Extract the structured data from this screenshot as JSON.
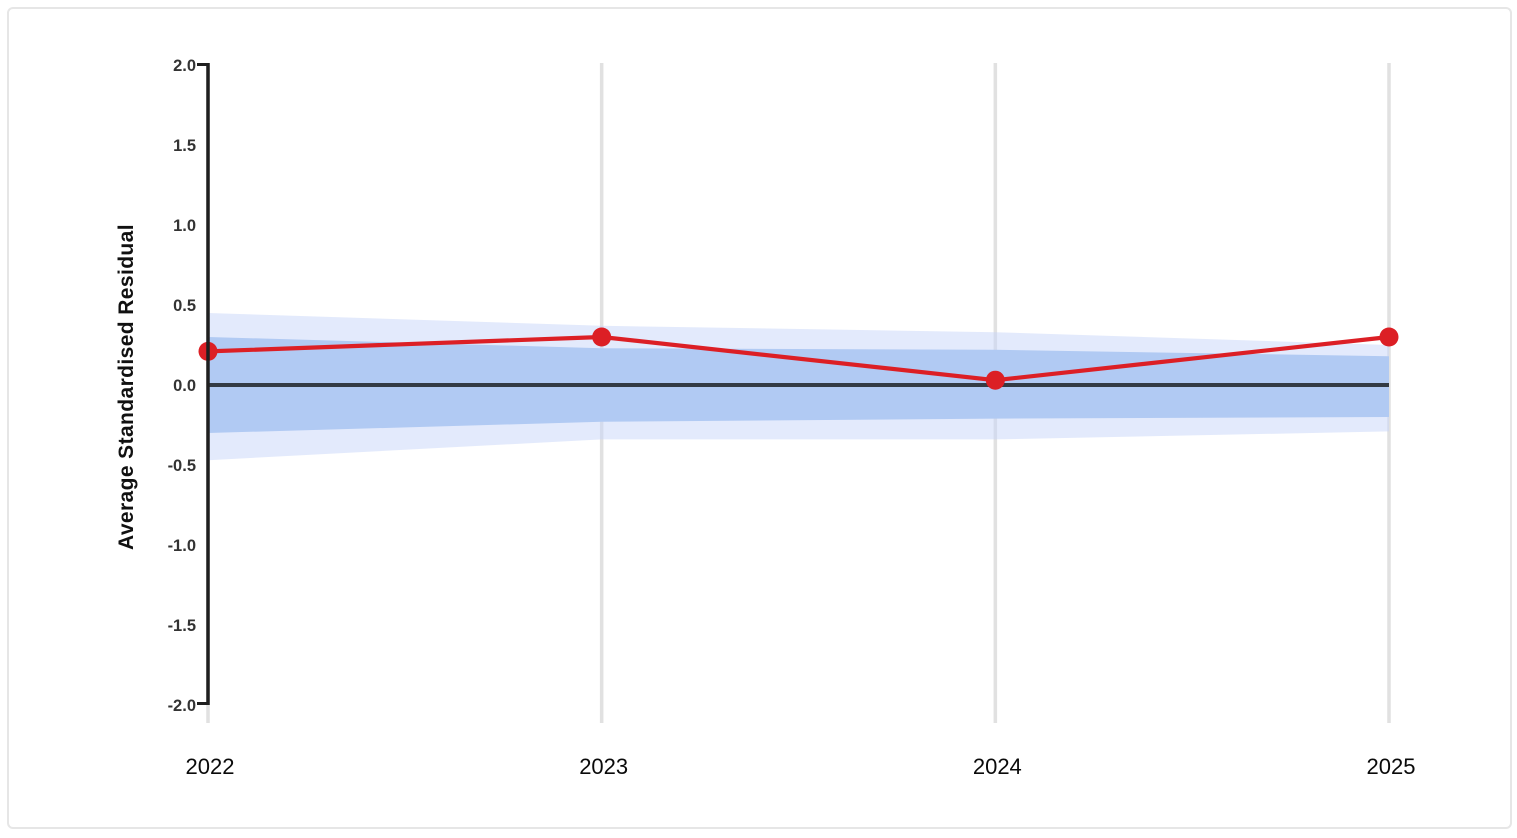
{
  "chart_data": {
    "type": "line",
    "title": "",
    "xlabel": "",
    "ylabel": "Average Standardised Residual",
    "categories": [
      "2022",
      "2023",
      "2024",
      "2025"
    ],
    "series": [
      {
        "name": "average-standardised-residual",
        "values": [
          0.21,
          0.3,
          0.03,
          0.3
        ],
        "marker": "circle"
      }
    ],
    "bands": {
      "inner": {
        "upper": [
          0.3,
          0.23,
          0.22,
          0.18
        ],
        "lower": [
          -0.3,
          -0.23,
          -0.21,
          -0.2
        ]
      },
      "outer": {
        "upper": [
          0.45,
          0.37,
          0.33,
          0.25
        ],
        "lower": [
          -0.47,
          -0.34,
          -0.34,
          -0.29
        ]
      }
    },
    "reference_line_y": 0.0,
    "ylim": [
      -2.0,
      2.0
    ],
    "y_tick_labels": [
      "2.0",
      "1.5",
      "1.0",
      "0.5",
      "0.0",
      "-0.5",
      "-1.0",
      "-1.5",
      "-2.0"
    ],
    "grid": "vertical-per-category",
    "legend": "none",
    "colors": {
      "series": "#dc1f25",
      "band_inner": "#b1caf3",
      "band_outer": "#c7d5f9",
      "reference_line": "#333b44",
      "axis": "#1f1f1f",
      "gridline": "#e1e1e1",
      "y_tick_label": "#333333",
      "x_tick_label": "#0a0a0a",
      "card_border": "#e6e6e6"
    }
  }
}
